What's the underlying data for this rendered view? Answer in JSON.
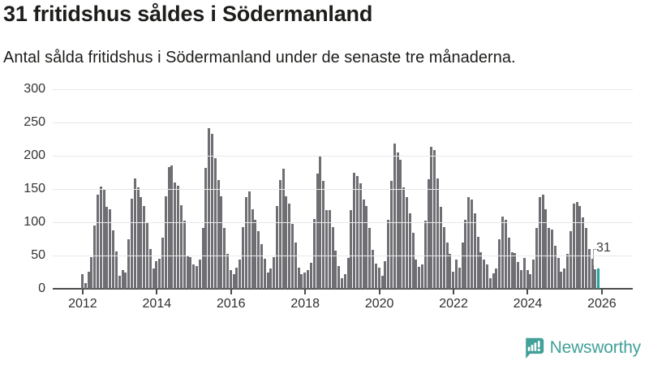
{
  "header": {
    "title": "31 fritidshus såldes i Södermanland",
    "subtitle": "Antal sålda fritidshus i Södermanland under de senaste tre månaderna."
  },
  "chart_data": {
    "type": "bar",
    "title": "31 fritidshus såldes i Södermanland",
    "subtitle": "Antal sålda fritidshus i Södermanland under de senaste tre månaderna.",
    "x_start_month": "2012-01",
    "x_end_month": "2025-12",
    "values": [
      22,
      9,
      26,
      48,
      95,
      141,
      154,
      149,
      123,
      119,
      88,
      56,
      20,
      28,
      24,
      75,
      135,
      166,
      152,
      138,
      124,
      100,
      60,
      30,
      42,
      45,
      77,
      139,
      183,
      185,
      160,
      155,
      126,
      102,
      50,
      48,
      36,
      34,
      44,
      91,
      182,
      242,
      233,
      196,
      164,
      139,
      91,
      52,
      28,
      22,
      32,
      44,
      93,
      138,
      146,
      119,
      104,
      87,
      67,
      45,
      24,
      30,
      48,
      124,
      164,
      181,
      139,
      128,
      98,
      69,
      32,
      22,
      24,
      28,
      39,
      105,
      173,
      200,
      162,
      118,
      118,
      93,
      57,
      34,
      16,
      22,
      46,
      118,
      175,
      169,
      158,
      134,
      124,
      91,
      59,
      38,
      32,
      20,
      41,
      104,
      162,
      218,
      205,
      194,
      152,
      138,
      113,
      84,
      44,
      33,
      36,
      102,
      165,
      213,
      208,
      166,
      123,
      93,
      69,
      52,
      26,
      44,
      32,
      69,
      104,
      138,
      134,
      113,
      78,
      55,
      44,
      36,
      16,
      23,
      30,
      75,
      109,
      104,
      77,
      55,
      54,
      40,
      28,
      46,
      28,
      22,
      44,
      91,
      138,
      141,
      119,
      91,
      89,
      65,
      46,
      26,
      31,
      52,
      87,
      128,
      130,
      125,
      107,
      91,
      60,
      45,
      29,
      31
    ],
    "ylim": [
      0,
      300
    ],
    "y_ticks": [
      0,
      50,
      100,
      150,
      200,
      250,
      300
    ],
    "x_tick_years": [
      "2012",
      "2014",
      "2016",
      "2018",
      "2020",
      "2022",
      "2024",
      "2026"
    ],
    "grid": "horizontal",
    "legend": "none",
    "bar_color": "#6e6e73",
    "highlight_color": "#1ea5a3",
    "highlight_index": 167,
    "annotation": {
      "text": "31",
      "value": 31
    }
  },
  "footer": {
    "brand": "Newsworthy",
    "brand_color": "#42a099"
  }
}
